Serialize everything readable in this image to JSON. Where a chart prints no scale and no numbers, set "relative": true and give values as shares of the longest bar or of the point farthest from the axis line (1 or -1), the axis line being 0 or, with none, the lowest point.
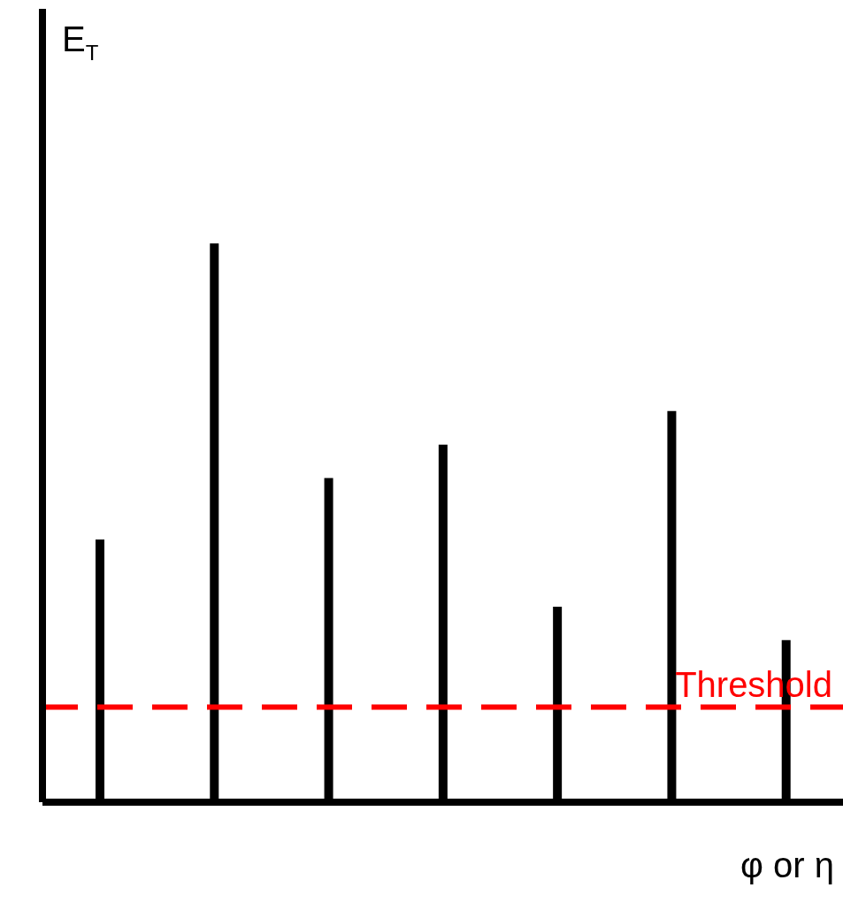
{
  "chart_data": {
    "type": "bar",
    "relative": true,
    "xlabel": "φ or η",
    "annotations": [
      "E$_{T}$"
    ],
    "categories": [
      null,
      null,
      null,
      null,
      null,
      null,
      null
    ],
    "values": [
      0.47,
      1,
      0.58,
      0.64,
      0.35,
      0.7,
      0.29
    ],
    "color": "#000000",
    "ref_lines": [
      {
        "axis": "y",
        "value": 0.17,
        "label": "Threshold",
        "color": "#ff0000",
        "line_style": "dashed"
      }
    ]
  }
}
